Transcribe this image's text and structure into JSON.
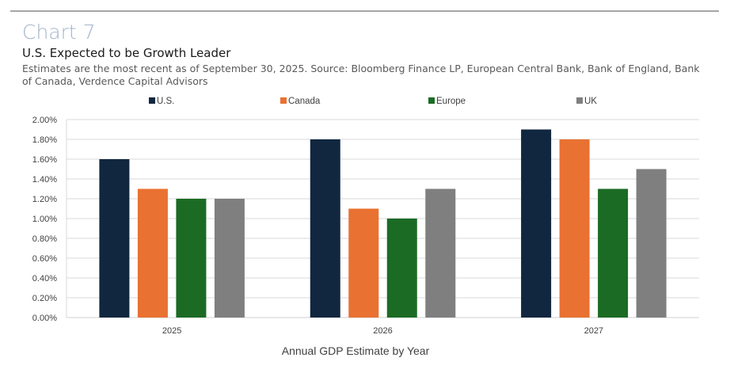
{
  "header": {
    "chart_label": "Chart 7",
    "title": "U.S. Expected to be Growth Leader",
    "subtitle": "Estimates are the most recent as of September 30, 2025. Source: Bloomberg Finance LP, European Central Bank, Bank of England, Bank of Canada, Verdence Capital Advisors"
  },
  "chart_data": {
    "type": "bar",
    "title": "U.S. Expected to be Growth Leader",
    "xlabel": "Annual GDP Estimate by Year",
    "ylabel": "",
    "categories": [
      "2025",
      "2026",
      "2027"
    ],
    "series": [
      {
        "name": "U.S.",
        "color": "#10273f",
        "values": [
          1.6,
          1.8,
          1.9
        ]
      },
      {
        "name": "Canada",
        "color": "#e97132",
        "values": [
          1.3,
          1.1,
          1.8
        ]
      },
      {
        "name": "Europe",
        "color": "#1b6b24",
        "values": [
          1.2,
          1.0,
          1.3
        ]
      },
      {
        "name": "UK",
        "color": "#7f7f7f",
        "values": [
          1.2,
          1.3,
          1.5
        ]
      }
    ],
    "ylim": [
      0,
      2.0
    ],
    "yticks": [
      0,
      0.2,
      0.4,
      0.6,
      0.8,
      1.0,
      1.2,
      1.4,
      1.6,
      1.8,
      2.0
    ],
    "ytick_labels": [
      "0.00%",
      "0.20%",
      "0.40%",
      "0.60%",
      "0.80%",
      "1.00%",
      "1.20%",
      "1.40%",
      "1.60%",
      "1.80%",
      "2.00%"
    ],
    "unit": "%",
    "grid": true,
    "legend_position": "top"
  }
}
